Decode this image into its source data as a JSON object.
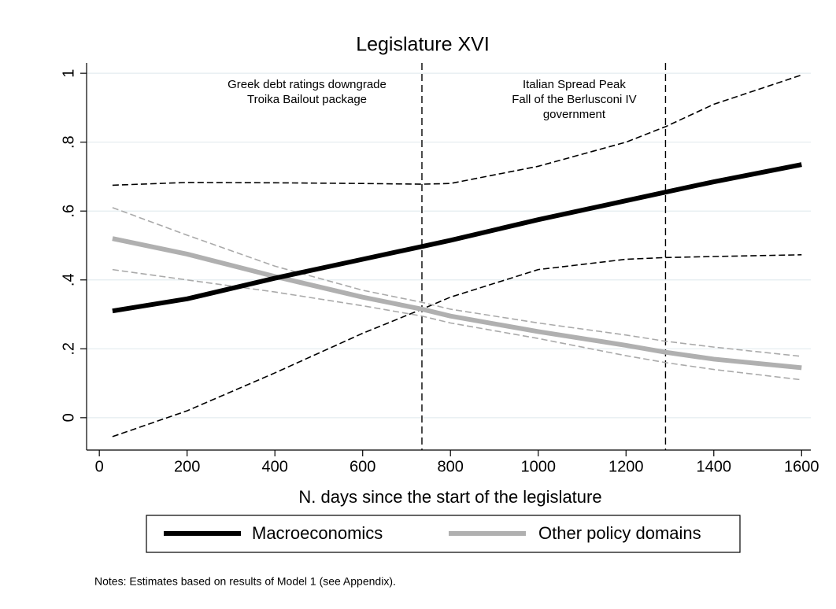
{
  "chart_data": {
    "type": "line",
    "title": "Legislature XVI",
    "xlabel": "N. days since the start of the legislature",
    "note": "Notes: Estimates based on results of Model 1 (see Appendix).",
    "x": [
      30,
      200,
      400,
      600,
      735,
      800,
      1000,
      1200,
      1290,
      1400,
      1600
    ],
    "series": [
      {
        "color": "#000000",
        "dashed": true,
        "width": 1.6,
        "values": [
          0.675,
          0.683,
          0.682,
          0.68,
          0.678,
          0.68,
          0.73,
          0.8,
          0.845,
          0.91,
          0.995
        ]
      },
      {
        "color": "#000000",
        "dashed": true,
        "width": 1.6,
        "values": [
          -0.055,
          0.02,
          0.13,
          0.245,
          0.315,
          0.35,
          0.43,
          0.46,
          0.465,
          0.468,
          0.473
        ]
      },
      {
        "color": "#aaaaaa",
        "dashed": true,
        "width": 1.6,
        "values": [
          0.61,
          0.53,
          0.44,
          0.37,
          0.335,
          0.315,
          0.275,
          0.24,
          0.222,
          0.205,
          0.178
        ]
      },
      {
        "color": "#aaaaaa",
        "dashed": true,
        "width": 1.6,
        "values": [
          0.43,
          0.4,
          0.365,
          0.325,
          0.295,
          0.275,
          0.23,
          0.18,
          0.16,
          0.14,
          0.11
        ]
      },
      {
        "name": "Other policy domains",
        "color": "#b0b0b0",
        "width": 6,
        "values": [
          0.52,
          0.475,
          0.41,
          0.35,
          0.315,
          0.295,
          0.25,
          0.21,
          0.19,
          0.17,
          0.145
        ]
      },
      {
        "name": "Macroeconomics",
        "color": "#000000",
        "width": 6,
        "values": [
          0.31,
          0.345,
          0.405,
          0.46,
          0.497,
          0.515,
          0.575,
          0.63,
          0.655,
          0.685,
          0.735
        ]
      }
    ],
    "vlines": [
      735,
      1290
    ],
    "annotations": [
      {
        "lines": [
          "Greek debt ratings downgrade",
          "Troika Bailout package"
        ]
      },
      {
        "lines": [
          "Italian Spread Peak",
          "Fall of the Berlusconi IV",
          "government"
        ]
      }
    ],
    "xlim": [
      -29,
      1621
    ],
    "ylim": [
      -0.094,
      1.03
    ],
    "xticks": [
      0,
      200,
      400,
      600,
      800,
      1000,
      1200,
      1400,
      1600
    ],
    "yticks": [
      0,
      {
        "value": 0.2,
        "label": ".2"
      },
      {
        "value": 0.4,
        "label": ".4"
      },
      {
        "value": 0.6,
        "label": ".6"
      },
      {
        "value": 0.8,
        "label": ".8"
      },
      1
    ],
    "grid": true
  }
}
